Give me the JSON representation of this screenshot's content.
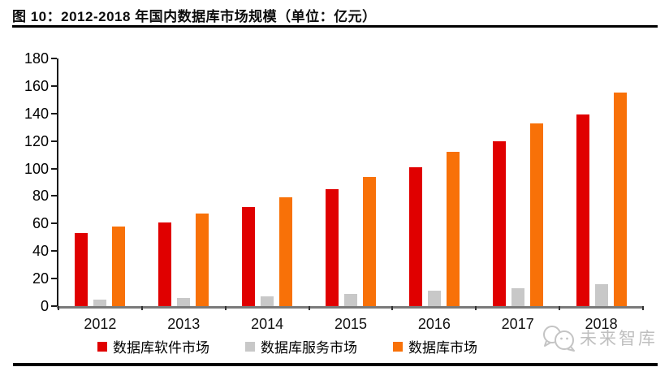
{
  "figure": {
    "title": "图 10：2012-2018 年国内数据库市场规模（单位：亿元）"
  },
  "chart_data": {
    "type": "bar",
    "title": "2012-2018 年国内数据库市场规模",
    "unit": "亿元",
    "categories": [
      "2012",
      "2013",
      "2014",
      "2015",
      "2016",
      "2017",
      "2018"
    ],
    "series": [
      {
        "name": "数据库软件市场",
        "color": "#e00000",
        "values": [
          53,
          61,
          72,
          85,
          101,
          120,
          139
        ]
      },
      {
        "name": "数据库服务市场",
        "color": "#c8c8c8",
        "values": [
          5,
          6,
          7,
          9,
          11,
          13,
          16
        ]
      },
      {
        "name": "数据库市场",
        "color": "#f87108",
        "values": [
          58,
          67,
          79,
          94,
          112,
          133,
          155
        ]
      }
    ],
    "ylim": [
      0,
      180
    ],
    "yticks": [
      0,
      20,
      40,
      60,
      80,
      100,
      120,
      140,
      160,
      180
    ],
    "grid": false,
    "legend_position": "bottom"
  },
  "watermark": {
    "text": "未来智库",
    "logo": "speech-bubbles-logo"
  },
  "colors": {
    "software_red": "#e00000",
    "service_gray": "#c8c8c8",
    "total_orange": "#f87108",
    "x_axis_gray": "#7a7a7a",
    "divider_black": "#000000",
    "watermark_gray": "#bfbfbf"
  }
}
